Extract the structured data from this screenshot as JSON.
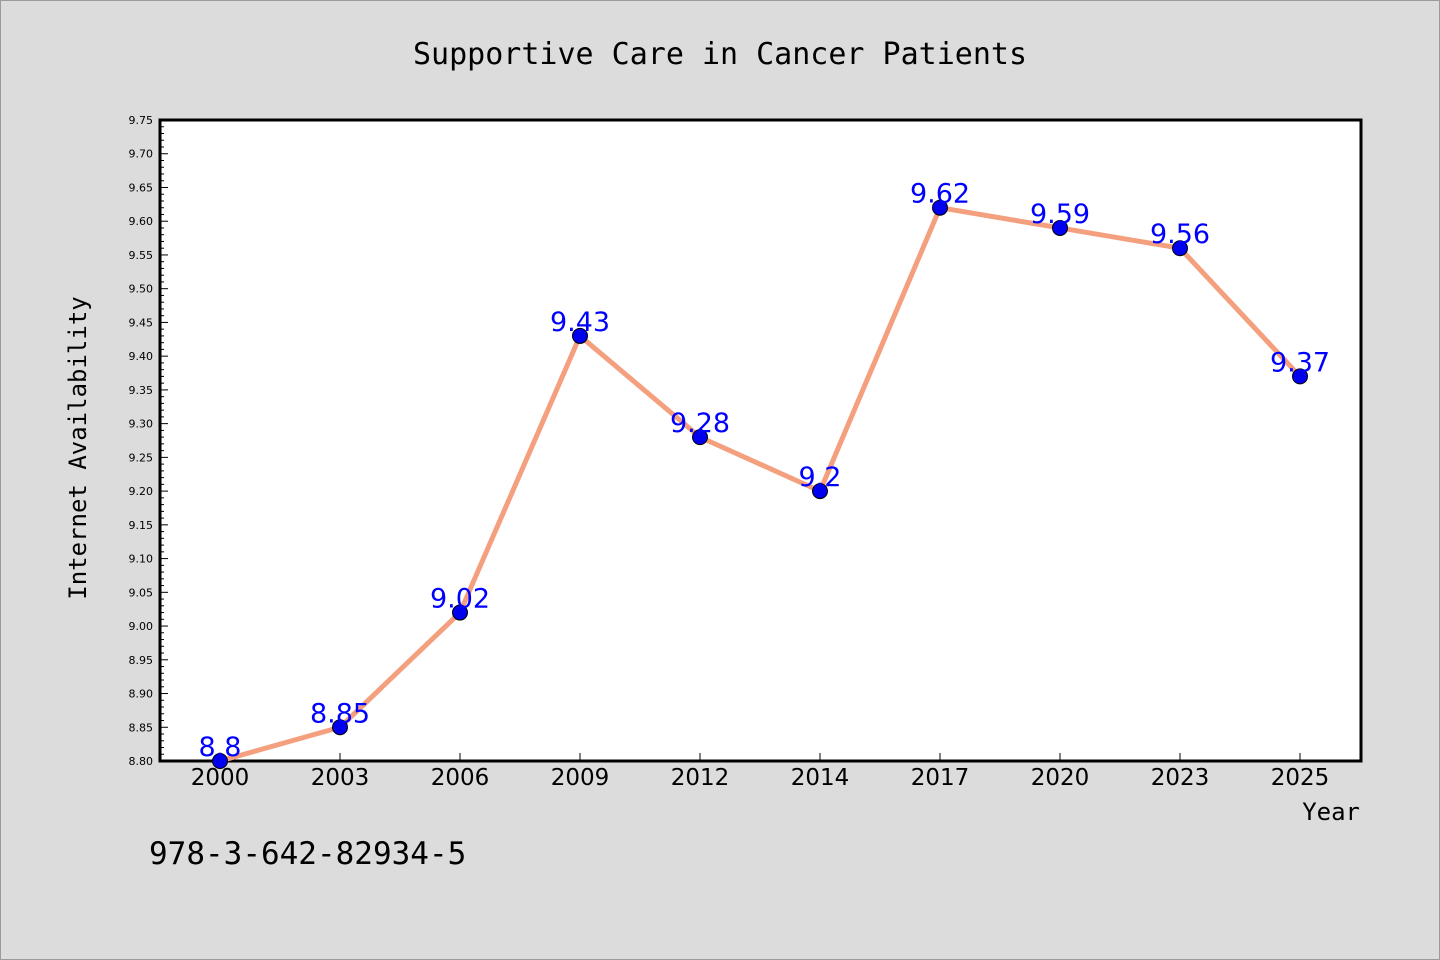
{
  "chart_data": {
    "type": "line",
    "title": "Supportive Care in Cancer Patients",
    "xlabel": "Year",
    "ylabel": "Internet Availability",
    "categories": [
      "2000",
      "2003",
      "2006",
      "2009",
      "2012",
      "2014",
      "2017",
      "2020",
      "2023",
      "2025"
    ],
    "values": [
      8.8,
      8.85,
      9.02,
      9.43,
      9.28,
      9.2,
      9.62,
      9.59,
      9.56,
      9.37
    ],
    "data_labels": [
      "8.8",
      "8.85",
      "9.02",
      "9.43",
      "9.28",
      "9.2",
      "9.62",
      "9.59",
      "9.56",
      "9.37"
    ],
    "ylim": [
      8.8,
      9.75
    ],
    "yticks": [
      "8.80",
      "8.85",
      "8.90",
      "8.95",
      "9.00",
      "9.05",
      "9.10",
      "9.15",
      "9.20",
      "9.25",
      "9.30",
      "9.35",
      "9.40",
      "9.45",
      "9.50",
      "9.55",
      "9.60",
      "9.65",
      "9.70",
      "9.75"
    ],
    "grid": false,
    "line_color": "#f4a07e",
    "marker_color": "#0000ee",
    "label_color": "#0000ff"
  },
  "footer_text": "978-3-642-82934-5"
}
